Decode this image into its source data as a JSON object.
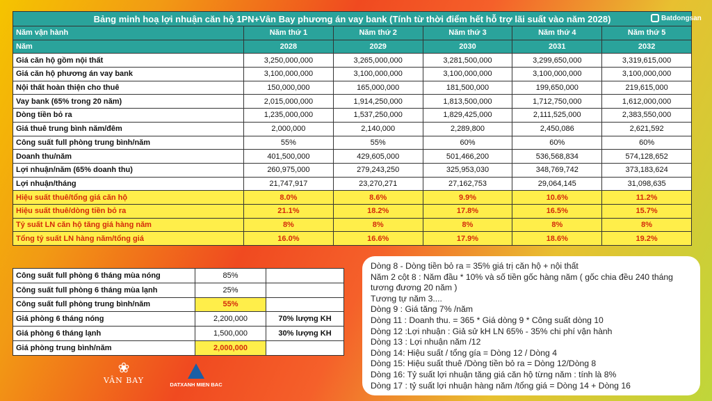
{
  "title": "Bảng minh hoạ lợi nhuận căn hộ 1PN+Vân Bay phương án vay bank (Tính từ thời điểm hết hỗ trợ lãi suất vào năm 2028)",
  "watermark": "Batdongsan",
  "header_rows": [
    {
      "label": "Năm vận hành",
      "values": [
        "Năm thứ 1",
        "Năm thứ 2",
        "Năm thứ 3",
        "Năm thứ 4",
        "Năm thứ 5"
      ]
    },
    {
      "label": "Năm",
      "values": [
        "2028",
        "2029",
        "2030",
        "2031",
        "2032"
      ]
    }
  ],
  "rows": [
    {
      "label": "Giá căn hộ gồm nội thất",
      "values": [
        "3,250,000,000",
        "3,265,000,000",
        "3,281,500,000",
        "3,299,650,000",
        "3,319,615,000"
      ]
    },
    {
      "label": "Giá căn hộ phương án vay bank",
      "values": [
        "3,100,000,000",
        "3,100,000,000",
        "3,100,000,000",
        "3,100,000,000",
        "3,100,000,000"
      ]
    },
    {
      "label": "Nội thất hoàn thiện cho thuê",
      "values": [
        "150,000,000",
        "165,000,000",
        "181,500,000",
        "199,650,000",
        "219,615,000"
      ]
    },
    {
      "label": "Vay bank (65% trong 20 năm)",
      "values": [
        "2,015,000,000",
        "1,914,250,000",
        "1,813,500,000",
        "1,712,750,000",
        "1,612,000,000"
      ]
    },
    {
      "label": "Dòng tiền bỏ ra",
      "values": [
        "1,235,000,000",
        "1,537,250,000",
        "1,829,425,000",
        "2,111,525,000",
        "2,383,550,000"
      ]
    },
    {
      "label": "Giá thuê trung bình năm/đêm",
      "values": [
        "2,000,000",
        "2,140,000",
        "2,289,800",
        "2,450,086",
        "2,621,592"
      ]
    },
    {
      "label": "Công suất full phòng trung bình/năm",
      "values": [
        "55%",
        "55%",
        "60%",
        "60%",
        "60%"
      ]
    },
    {
      "label": "Doanh thu/năm",
      "values": [
        "401,500,000",
        "429,605,000",
        "501,466,200",
        "536,568,834",
        "574,128,652"
      ]
    },
    {
      "label": "Lợi nhuận/năm (65% doanh thu)",
      "values": [
        "260,975,000",
        "279,243,250",
        "325,953,030",
        "348,769,742",
        "373,183,624"
      ]
    },
    {
      "label": "Lợi nhuận/tháng",
      "values": [
        "21,747,917",
        "23,270,271",
        "27,162,753",
        "29,064,145",
        "31,098,635"
      ]
    }
  ],
  "highlight_rows": [
    {
      "label": "Hiệu suất thuê/tổng giá căn hộ",
      "values": [
        "8.0%",
        "8.6%",
        "9.9%",
        "10.6%",
        "11.2%"
      ]
    },
    {
      "label": "Hiệu suất thuê/dòng tiền bỏ ra",
      "values": [
        "21.1%",
        "18.2%",
        "17.8%",
        "16.5%",
        "15.7%"
      ]
    },
    {
      "label": "Tỷ suất LN căn hộ tăng giá hàng năm",
      "values": [
        "8%",
        "8%",
        "8%",
        "8%",
        "8%"
      ]
    },
    {
      "label": "Tổng tỷ suất LN hàng năm/tổng giá",
      "values": [
        "16.0%",
        "16.6%",
        "17.9%",
        "18.6%",
        "19.2%"
      ]
    }
  ],
  "side_table": [
    {
      "label": "Công suất full phòng 6 tháng mùa nóng",
      "value": "85%",
      "note": ""
    },
    {
      "label": "Công suất full phòng 6 tháng mùa lạnh",
      "value": "25%",
      "note": ""
    },
    {
      "label": "Công suất full phòng trung bình/năm",
      "value": "55%",
      "note": ""
    },
    {
      "label": "Giá phòng 6 tháng nóng",
      "value": "2,200,000",
      "note": "70% lượng KH"
    },
    {
      "label": "Giá phòng 6 tháng lạnh",
      "value": "1,500,000",
      "note": "30% lượng KH"
    },
    {
      "label": "Giá phòng trung bình/năm",
      "value": "2,000,000",
      "note": ""
    }
  ],
  "notes": [
    "Dòng 8 - Dòng tiền bỏ ra  = 35% giá trị căn hộ + nội thất",
    "Năm 2 cột 8 : Năm đầu * 10% và số tiền gốc hàng năm ( gốc chia đều 240 tháng tương đương 20 năm )",
    "Tương tự năm 3....",
    "Dòng 9 : Giá tăng 7% /năm",
    "Dòng 11 : Doanh thu. = 365 * Giá dòng 9 * Công suất dòng 10",
    "Dòng 12 :Lợi nhuận : Giả sử kH LN 65% - 35% chi phí vận hành",
    "Dòng 13 : Lợi nhuận năm /12",
    "Dòng 14:  Hiệu suất / tổng gía  = Dòng 12 / Dòng 4",
    "Dòng 15: Hiệu suất thuê /Dòng tiền bỏ ra = Dòng 12/Dòng 8",
    "Dòng 16: Tỷ suất lợi nhuận tăng giá căn hộ từng năm : tính là 8%",
    "Dòng 17 : tỷ suất lợi nhuận hàng năm /tổng giá = Dòng 14 + Dòng 16"
  ],
  "logos": {
    "vanbay": "VÂN BAY",
    "datxanh": "DATXANH MIEN BAC"
  }
}
